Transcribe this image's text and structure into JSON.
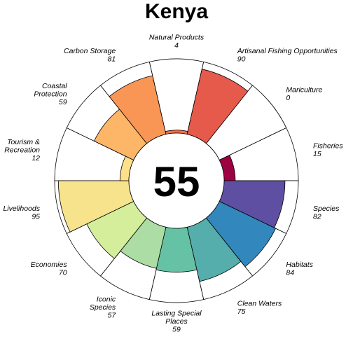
{
  "chart_data": {
    "type": "rose",
    "title": "Kenya",
    "center_score": "55",
    "ylim": [
      0,
      100
    ],
    "series": [
      {
        "label": [
          "Natural Products"
        ],
        "value": 4,
        "color": "#F46D43"
      },
      {
        "label": [
          "Artisanal Fishing Opportunities"
        ],
        "value": 90,
        "color": "#E65A4C"
      },
      {
        "label": [
          "Mariculture"
        ],
        "value": 0,
        "color": "#D53E4F"
      },
      {
        "label": [
          "Fisheries"
        ],
        "value": 15,
        "color": "#9E0142"
      },
      {
        "label": [
          "Species"
        ],
        "value": 82,
        "color": "#5E4FA2"
      },
      {
        "label": [
          "Habitats"
        ],
        "value": 84,
        "color": "#3288BD"
      },
      {
        "label": [
          "Clean Waters"
        ],
        "value": 75,
        "color": "#55ADAC"
      },
      {
        "label": [
          "Lasting Special",
          "Places"
        ],
        "value": 59,
        "color": "#66C2A5"
      },
      {
        "label": [
          "Iconic",
          "Species"
        ],
        "value": 57,
        "color": "#ABDDA4"
      },
      {
        "label": [
          "Economies"
        ],
        "value": 70,
        "color": "#D5EE9B"
      },
      {
        "label": [
          "Livelihoods"
        ],
        "value": 95,
        "color": "#F7E38C"
      },
      {
        "label": [
          "Tourism &",
          "Recreation"
        ],
        "value": 12,
        "color": "#FEE08B"
      },
      {
        "label": [
          "Coastal",
          "Protection"
        ],
        "value": 59,
        "color": "#FDB567"
      },
      {
        "label": [
          "Carbon Storage"
        ],
        "value": 81,
        "color": "#F99656"
      }
    ]
  }
}
